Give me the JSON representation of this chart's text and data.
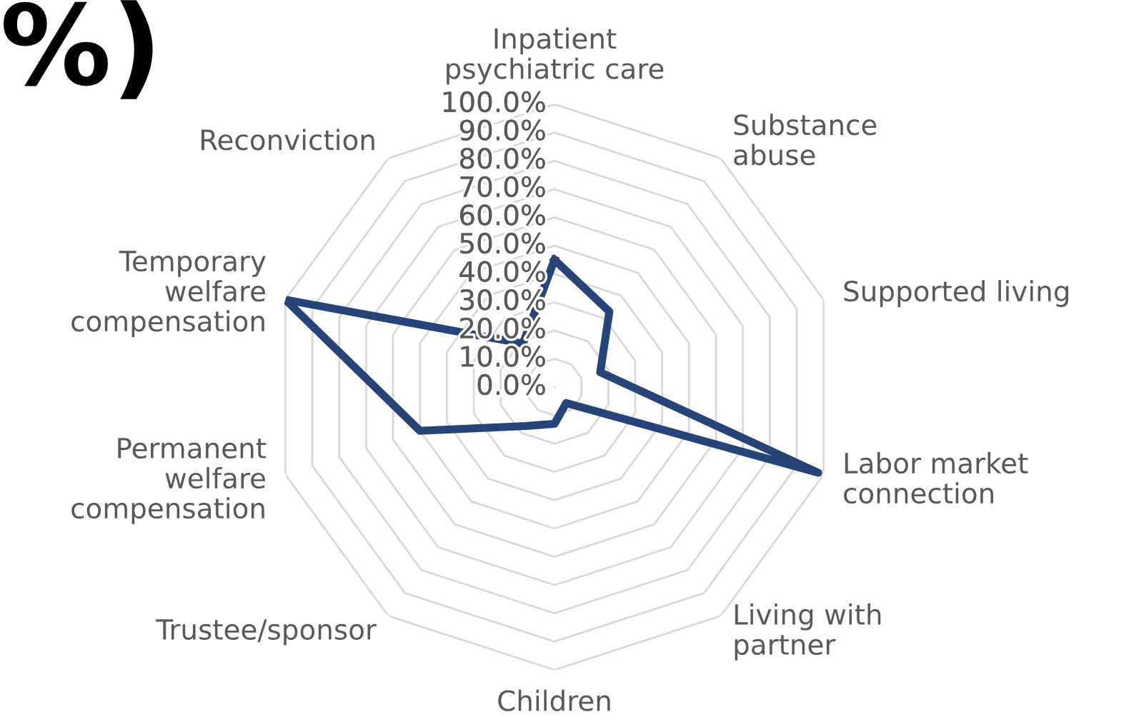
{
  "chart_data": {
    "type": "radar",
    "title": "%)",
    "categories": [
      "Inpatient\npsychiatric care",
      "Substance\nabuse",
      "Supported living",
      "Labor market\nconnection",
      "Living with\npartner",
      "Children",
      "Trustee/sponsor",
      "Permanent\nwelfare\ncompensation",
      "Temporary\nwelfare\ncompensation",
      "Reconviction"
    ],
    "series": [
      {
        "color": "#264478",
        "values": [
          45,
          33,
          17,
          98,
          7,
          13,
          17,
          50,
          100,
          19
        ]
      }
    ],
    "ylim": [
      0,
      100
    ],
    "yticks": [
      {
        "value": 0,
        "label": "0.0%"
      },
      {
        "value": 10,
        "label": "10.0%"
      },
      {
        "value": 20,
        "label": "20.0%"
      },
      {
        "value": 30,
        "label": "30.0%"
      },
      {
        "value": 40,
        "label": "40.0%"
      },
      {
        "value": 50,
        "label": "50.0%"
      },
      {
        "value": 60,
        "label": "60.0%"
      },
      {
        "value": 70,
        "label": "70.0%"
      },
      {
        "value": 80,
        "label": "80.0%"
      },
      {
        "value": 90,
        "label": "90.0%"
      },
      {
        "value": 100,
        "label": "100.0%"
      }
    ],
    "grid": true,
    "legend": false,
    "marker": "none",
    "line_style": "solid"
  }
}
